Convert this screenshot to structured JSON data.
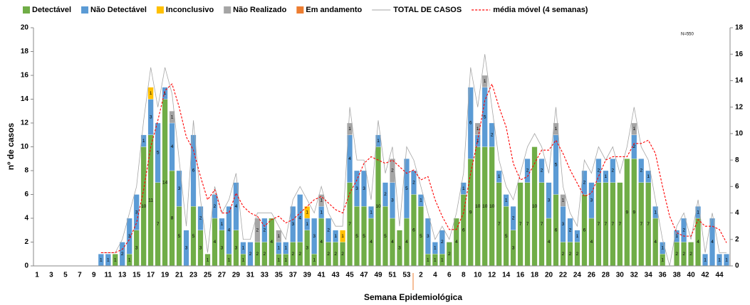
{
  "chart_data": {
    "type": "bar",
    "ylabel": "nº de casos",
    "xlabel": "Semana Epidemiológica",
    "annotation": "N=550",
    "categories": [
      "1",
      null,
      "3",
      null,
      "5",
      null,
      "7",
      null,
      "9",
      null,
      "11",
      null,
      "13",
      null,
      "15",
      null,
      "17",
      null,
      "19",
      null,
      "21",
      null,
      "23",
      null,
      "25",
      null,
      "27",
      null,
      "29",
      null,
      "31",
      null,
      "33",
      null,
      "35",
      null,
      "37",
      null,
      "39",
      null,
      "41",
      null,
      "43",
      null,
      "45",
      null,
      "47",
      null,
      "49",
      null,
      "51",
      null,
      "53",
      null,
      "2",
      null,
      "4",
      null,
      "6",
      null,
      "8",
      null,
      "10",
      null,
      "12",
      null,
      "14",
      null,
      "16",
      null,
      "18",
      null,
      "20",
      null,
      "22",
      null,
      "24",
      null,
      "26",
      null,
      "28",
      null,
      "30",
      null,
      "32",
      null,
      "34",
      null,
      "36",
      null,
      "38",
      null,
      "40",
      null,
      "42",
      null,
      "44",
      null
    ],
    "ylim": [
      0,
      20
    ],
    "yticks": [
      0,
      2,
      4,
      6,
      8,
      10,
      12,
      14,
      16,
      18,
      20
    ],
    "y2lim": [
      0,
      18
    ],
    "y2ticks": [
      0,
      2,
      4,
      6,
      8,
      10,
      12,
      14,
      16,
      18
    ],
    "series": [
      {
        "name": "Detectável",
        "type": "bar",
        "color": "#70ad47",
        "values": [
          0,
          0,
          0,
          0,
          0,
          0,
          0,
          0,
          0,
          0,
          0,
          1,
          0,
          1,
          3,
          10,
          11,
          7,
          14,
          8,
          5,
          0,
          5,
          3,
          1,
          4,
          3,
          1,
          3,
          1,
          0,
          2,
          2,
          4,
          1,
          1,
          2,
          2,
          3,
          1,
          4,
          2,
          2,
          2,
          7,
          5,
          5,
          4,
          10,
          5,
          4,
          3,
          4,
          6,
          5,
          1,
          1,
          1,
          2,
          4,
          6,
          9,
          10,
          10,
          10,
          7,
          5,
          3,
          7,
          7,
          10,
          7,
          4,
          6,
          2,
          2,
          2,
          6,
          4,
          7,
          7,
          7,
          7,
          9,
          9,
          7,
          7,
          4,
          1,
          0,
          2,
          2,
          2,
          4,
          0,
          0,
          0,
          0
        ]
      },
      {
        "name": "Não Detectável",
        "type": "bar",
        "color": "#5b9bd5",
        "values": [
          0,
          0,
          0,
          0,
          0,
          0,
          0,
          0,
          0,
          1,
          1,
          0,
          2,
          3,
          3,
          1,
          3,
          5,
          1,
          4,
          3,
          3,
          6,
          2,
          0,
          2,
          1,
          4,
          4,
          1,
          2,
          0,
          2,
          0,
          1,
          1,
          3,
          4,
          1,
          3,
          1,
          2,
          1,
          0,
          4,
          3,
          3,
          1,
          1,
          2,
          3,
          0,
          5,
          2,
          1,
          3,
          1,
          2,
          0,
          0,
          1,
          6,
          1,
          5,
          2,
          1,
          1,
          2,
          0,
          2,
          0,
          2,
          3,
          5,
          3,
          2,
          1,
          2,
          3,
          2,
          1,
          2,
          0,
          0,
          2,
          2,
          1,
          1,
          1,
          0,
          1,
          2,
          0,
          1,
          1,
          4,
          1,
          1
        ]
      },
      {
        "name": "Inconclusivo",
        "type": "bar",
        "color": "#ffc000",
        "values": [
          0,
          0,
          0,
          0,
          0,
          0,
          0,
          0,
          0,
          0,
          0,
          0,
          0,
          0,
          0,
          0,
          1,
          0,
          0,
          0,
          0,
          0,
          0,
          0,
          0,
          0,
          0,
          0,
          0,
          0,
          0,
          0,
          0,
          0,
          0,
          0,
          0,
          0,
          1,
          0,
          0,
          0,
          0,
          1,
          0,
          0,
          0,
          0,
          0,
          0,
          0,
          0,
          0,
          0,
          0,
          0,
          0,
          0,
          0,
          0,
          0,
          0,
          0,
          0,
          0,
          0,
          0,
          0,
          0,
          0,
          0,
          0,
          0,
          0,
          0,
          0,
          0,
          0,
          0,
          0,
          0,
          0,
          0,
          0,
          0,
          0,
          0,
          0,
          0,
          0,
          0,
          0,
          0,
          0,
          0,
          0,
          0,
          0
        ]
      },
      {
        "name": "Não Realizado",
        "type": "bar",
        "color": "#a5a5a5",
        "values": [
          0,
          0,
          0,
          0,
          0,
          0,
          0,
          0,
          0,
          0,
          0,
          0,
          0,
          0,
          0,
          0,
          0,
          0,
          0,
          1,
          0,
          0,
          0,
          0,
          0,
          0,
          0,
          0,
          0,
          0,
          0,
          2,
          0,
          0,
          1,
          0,
          0,
          0,
          0,
          0,
          1,
          0,
          0,
          0,
          1,
          0,
          0,
          0,
          0,
          0,
          2,
          0,
          0,
          0,
          0,
          0,
          0,
          0,
          0,
          0,
          0,
          0,
          1,
          1,
          0,
          0,
          0,
          0,
          0,
          0,
          0,
          0,
          0,
          1,
          1,
          0,
          0,
          0,
          0,
          0,
          0,
          0,
          0,
          0,
          1,
          0,
          0,
          0,
          0,
          0,
          0,
          0,
          0,
          0,
          0,
          0,
          0,
          0
        ]
      },
      {
        "name": "Em andamento",
        "type": "bar",
        "color": "#ed7d31",
        "values": [
          0,
          0,
          0,
          0,
          0,
          0,
          0,
          0,
          0,
          0,
          0,
          0,
          0,
          0,
          0,
          0,
          0,
          0,
          0,
          0,
          0,
          0,
          0,
          0,
          0,
          0,
          0,
          0,
          0,
          0,
          0,
          0,
          0,
          0,
          0,
          0,
          0,
          0,
          0,
          0,
          0,
          0,
          0,
          0,
          0,
          0,
          0,
          0,
          0,
          0,
          0,
          0,
          0,
          0,
          0,
          0,
          0,
          0,
          0,
          0,
          0,
          0,
          0,
          0,
          0,
          0,
          0,
          0,
          0,
          0,
          0,
          0,
          0,
          0,
          0,
          0,
          0,
          0,
          0,
          0,
          0,
          0,
          0,
          0,
          0,
          0,
          0,
          0,
          0,
          0,
          0,
          0,
          0,
          0,
          0,
          0,
          0,
          0
        ]
      },
      {
        "name": "TOTAL DE CASOS",
        "type": "line",
        "axis": "y2",
        "color": "#a6a6a6",
        "values": [
          null,
          null,
          null,
          null,
          null,
          null,
          null,
          null,
          null,
          1,
          1,
          1,
          2,
          4,
          6,
          11,
          15,
          12,
          15,
          13,
          8,
          3,
          11,
          5,
          1,
          6,
          4,
          5,
          7,
          2,
          2,
          4,
          4,
          4,
          3,
          2,
          5,
          6,
          5,
          4,
          6,
          4,
          3,
          3,
          12,
          8,
          8,
          5,
          11,
          7,
          9,
          3,
          9,
          8,
          6,
          4,
          2,
          3,
          2,
          4,
          7,
          15,
          12,
          16,
          12,
          8,
          6,
          5,
          7,
          9,
          10,
          9,
          7,
          12,
          6,
          4,
          3,
          8,
          7,
          9,
          8,
          9,
          7,
          9,
          12,
          9,
          8,
          5,
          2,
          0,
          3,
          4,
          2,
          5,
          1,
          4,
          1,
          1
        ]
      },
      {
        "name": "média móvel (4 semanas)",
        "type": "line",
        "axis": "y2",
        "dashed": true,
        "color": "#ff0000",
        "values": [
          null,
          null,
          null,
          null,
          null,
          null,
          null,
          null,
          null,
          1,
          1,
          1,
          1.25,
          2,
          3.25,
          5.75,
          9,
          11,
          13.25,
          13.75,
          12,
          9.75,
          8.75,
          6.75,
          5,
          5.75,
          4,
          4,
          5.5,
          4.5,
          4,
          3.75,
          3,
          3.5,
          3.75,
          3.25,
          3.5,
          4,
          4.5,
          5,
          5.25,
          4.75,
          4.25,
          4,
          5.5,
          6.5,
          7.75,
          8.25,
          8,
          7.75,
          8,
          7.5,
          7,
          7.25,
          6.5,
          6.75,
          5,
          3.75,
          2.75,
          2.75,
          4,
          7,
          9.5,
          12.5,
          13.75,
          12,
          10.5,
          7.75,
          6.5,
          6.75,
          7.75,
          8.75,
          8.75,
          9.5,
          8.5,
          7.25,
          6.25,
          5.25,
          5.5,
          6.75,
          8,
          8.25,
          8.25,
          8.25,
          9.25,
          9.25,
          9.5,
          8.5,
          6,
          3.75,
          2.5,
          2.25,
          2.25,
          3.5,
          3,
          3,
          2.75,
          1.75
        ]
      }
    ]
  }
}
